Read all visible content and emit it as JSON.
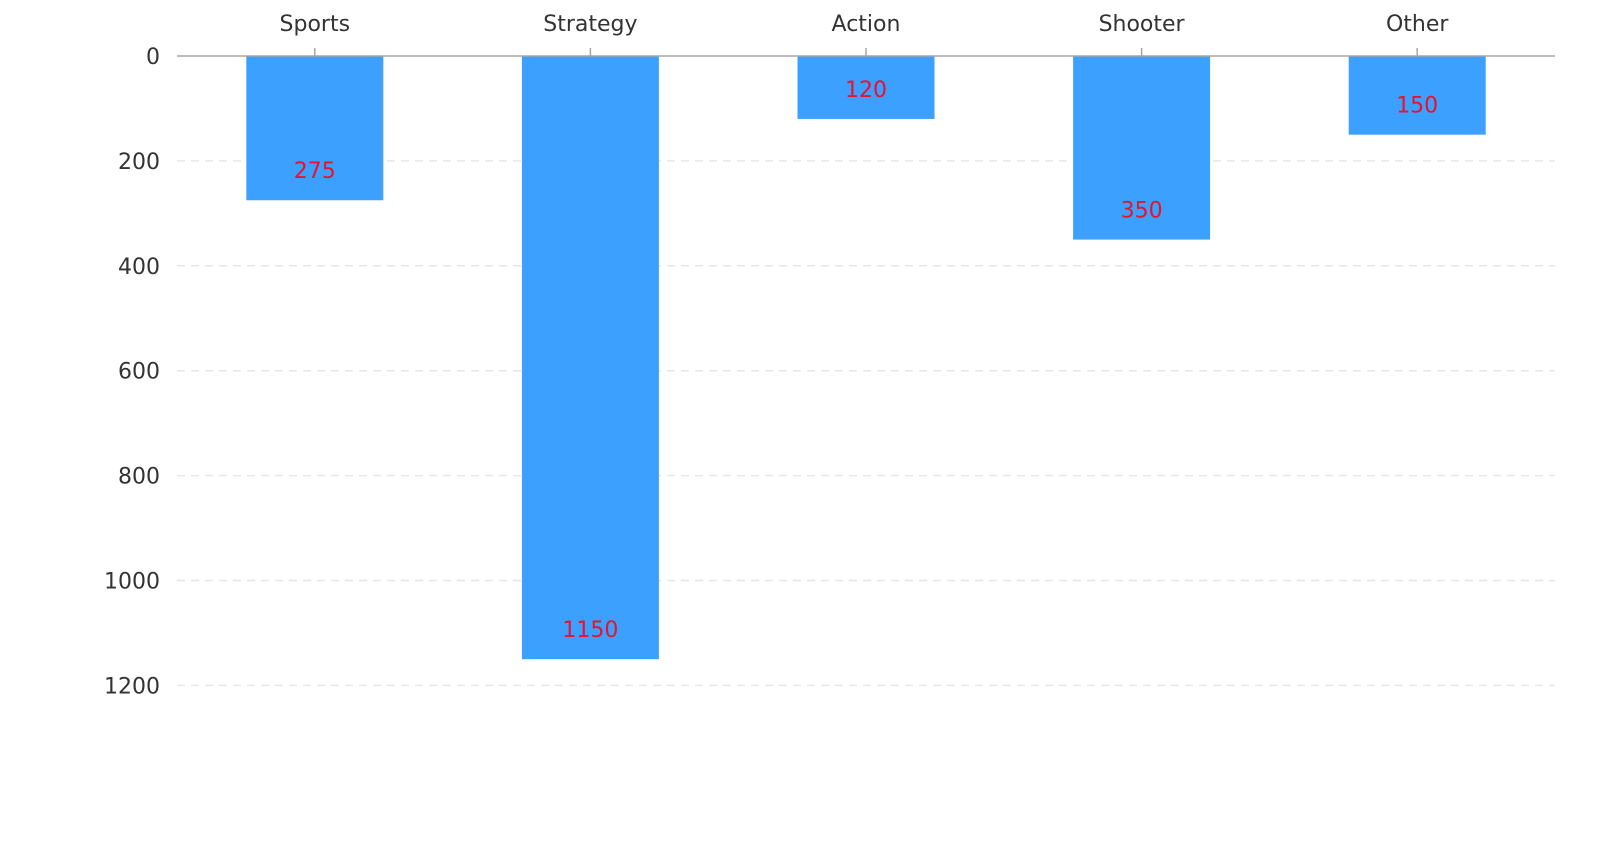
{
  "chart_data": {
    "type": "bar",
    "categories": [
      "Sports",
      "Strategy",
      "Action",
      "Shooter",
      "Other"
    ],
    "values": [
      275,
      1150,
      120,
      350,
      150
    ],
    "title": "",
    "xlabel": "",
    "ylabel": "",
    "ylim": [
      0,
      1200
    ],
    "yticks": [
      0,
      200,
      400,
      600,
      800,
      1000,
      1200
    ],
    "y_axis_inverted": true,
    "x_axis_position": "top",
    "grid": "horizontal-dashed",
    "legend": "none",
    "data_labels": [
      "275",
      "1150",
      "120",
      "350",
      "150"
    ]
  },
  "colors": {
    "bar": "#3ba0ff",
    "data_label": "#e8132a",
    "grid": "#e6e6e6",
    "axis": "#a6a6a6",
    "text": "#333333"
  }
}
